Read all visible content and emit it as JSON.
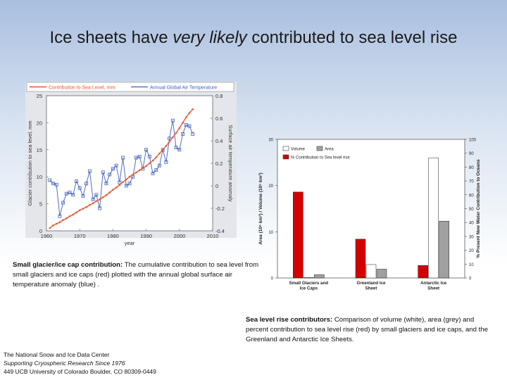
{
  "slide": {
    "title_pre": "Ice sheets have ",
    "title_em": "very likely",
    "title_post": " contributed to sea level rise"
  },
  "caption_left": {
    "bold": "Small glacier/ice cap contribution:",
    "text": " The cumulative contribution to sea level from small glaciers and ice caps (red) plotted with the annual global surface air temperature anomaly (blue) ."
  },
  "caption_right": {
    "bold": "Sea level rise contributors:",
    "text": " Comparison of volume (white), area (grey) and percent contribution to sea level rise (red) by small glaciers and ice caps, and the Greenland and Antarctic Ice Sheets."
  },
  "footer": {
    "line1": "The National Snow and Ice Data Center",
    "line2": "Supporting Cryospheric Research Since 1976",
    "line3": "449 UCB  University of Colorado  Boulder, CO 80309-0449"
  },
  "chart_data": [
    {
      "type": "line",
      "legend": [
        "Contribution to Sea Level, mm",
        "Annual Global Air Temperature"
      ],
      "xlabel": "year",
      "ylabel": "Glacier contribution to sea level, mm",
      "ylabel_right": "Surface air temperature anomaly",
      "xticks": [
        "1960",
        "1970",
        "1980",
        "1990",
        "2000",
        "2010"
      ],
      "yticks": [
        "0",
        "5",
        "10",
        "15",
        "20",
        "25"
      ],
      "yticks_right": [
        "-0.4",
        "-0.2",
        "0",
        "0.2",
        "0.4",
        "0.6",
        "0.8"
      ],
      "xlim": [
        1960,
        2010
      ],
      "ylim": [
        0,
        25
      ],
      "ylim_right": [
        -0.4,
        0.8
      ],
      "grid": false,
      "colors": {
        "sea_level": "#e8552c",
        "temperature": "#3f5fbd"
      },
      "series": [
        {
          "name": "Contribution to Sea Level, mm",
          "x": [
            1961,
            1962,
            1963,
            1964,
            1965,
            1966,
            1967,
            1968,
            1969,
            1970,
            1971,
            1972,
            1973,
            1974,
            1975,
            1976,
            1977,
            1978,
            1979,
            1980,
            1981,
            1982,
            1983,
            1984,
            1985,
            1986,
            1987,
            1988,
            1989,
            1990,
            1991,
            1992,
            1993,
            1994,
            1995,
            1996,
            1997,
            1998,
            1999,
            2000,
            2001,
            2002,
            2003,
            2004
          ],
          "values": [
            0.5,
            1.0,
            1.3,
            1.6,
            2.0,
            2.3,
            2.7,
            3.0,
            3.4,
            3.8,
            4.1,
            4.4,
            4.8,
            5.1,
            5.5,
            5.8,
            6.2,
            6.6,
            7.1,
            7.6,
            8.0,
            8.5,
            9.0,
            9.5,
            10.0,
            10.4,
            10.8,
            11.2,
            11.6,
            12.0,
            12.5,
            13.0,
            13.6,
            14.3,
            15.0,
            15.7,
            16.5,
            17.3,
            18.1,
            19.0,
            20.0,
            21.0,
            21.8,
            22.5
          ]
        },
        {
          "name": "Annual Global Air Temperature",
          "x": [
            1961,
            1962,
            1963,
            1964,
            1965,
            1966,
            1967,
            1968,
            1969,
            1970,
            1971,
            1972,
            1973,
            1974,
            1975,
            1976,
            1977,
            1978,
            1979,
            1980,
            1981,
            1982,
            1983,
            1984,
            1985,
            1986,
            1987,
            1988,
            1989,
            1990,
            1991,
            1992,
            1993,
            1994,
            1995,
            1996,
            1997,
            1998,
            1999,
            2000,
            2001,
            2002,
            2003,
            2004
          ],
          "values": [
            0.05,
            0.02,
            0.01,
            -0.27,
            -0.15,
            -0.07,
            -0.06,
            -0.08,
            0.04,
            -0.02,
            -0.09,
            0.02,
            0.13,
            -0.12,
            -0.08,
            -0.2,
            0.12,
            0.02,
            0.1,
            0.15,
            0.18,
            0.03,
            0.25,
            0.0,
            0.02,
            0.08,
            0.25,
            0.26,
            0.15,
            0.32,
            0.26,
            0.11,
            0.14,
            0.18,
            0.32,
            0.21,
            0.42,
            0.58,
            0.34,
            0.32,
            0.46,
            0.54,
            0.53,
            0.46
          ]
        }
      ]
    },
    {
      "type": "bar",
      "categories": [
        "Small Glaciers and Ice Caps",
        "Greenland Ice Sheet",
        "Antarctic Ice Sheet"
      ],
      "legend": [
        "Volume",
        "Area",
        "% Contribution to Sea level rise"
      ],
      "ylabel": "Area (10⁶ km²) / Volume (10⁶ km³)",
      "ylabel_right": "% Present New Water Contribution to Oceans",
      "yticks": [
        "0",
        "10",
        "20",
        "30"
      ],
      "yticks_right": [
        "0",
        "10",
        "20",
        "30",
        "40",
        "50",
        "60",
        "70",
        "80",
        "90",
        "100"
      ],
      "ylim": [
        0,
        30
      ],
      "ylim_right": [
        0,
        100
      ],
      "colors": {
        "volume": "#ffffff",
        "area": "#a0a0a0",
        "percent": "#d40000"
      },
      "series": [
        {
          "name": "Volume",
          "values": [
            0.1,
            2.9,
            26.0
          ]
        },
        {
          "name": "Area",
          "values": [
            0.7,
            1.9,
            12.3
          ]
        },
        {
          "name": "% Contribution to Sea level rise",
          "values": [
            62,
            28,
            9
          ]
        }
      ]
    }
  ]
}
